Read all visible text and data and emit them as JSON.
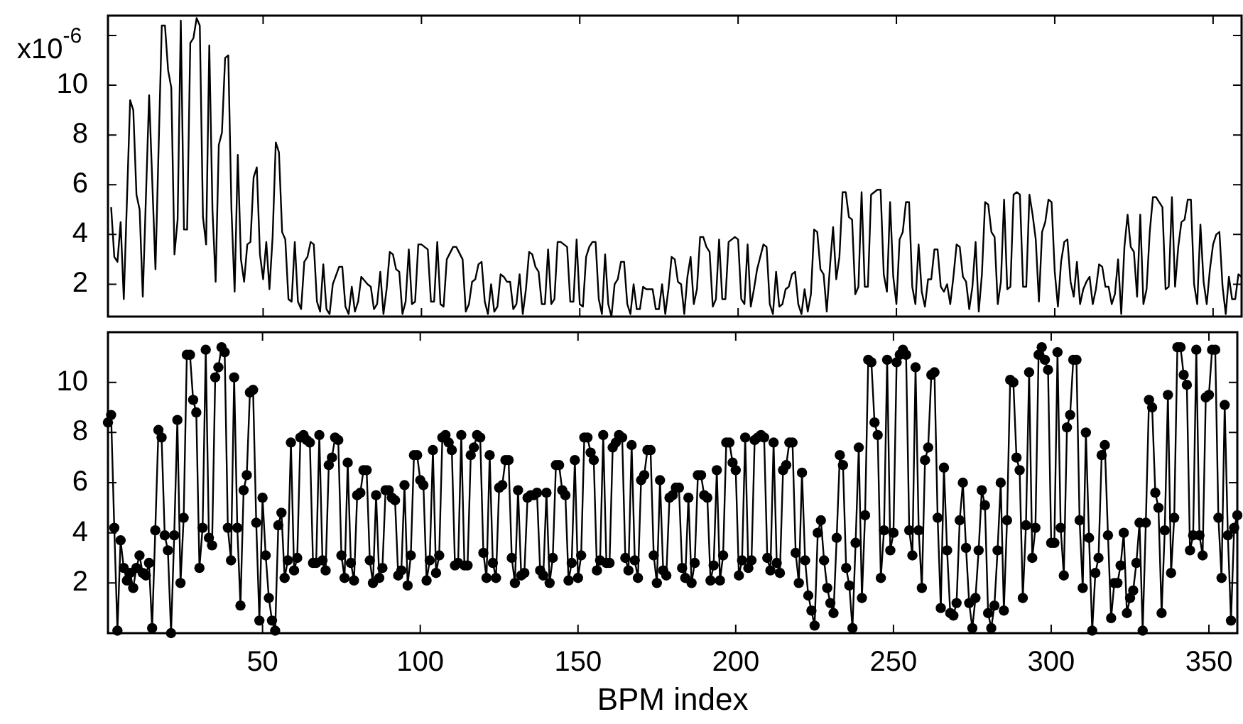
{
  "chart_data": [
    {
      "type": "line",
      "ylabel": "x10$^{-6}$",
      "marker": "none",
      "line_style": "solid",
      "grid": false,
      "legend": false,
      "tick_labels": "y",
      "xlim": [
        1,
        359
      ],
      "xticks": [
        50,
        100,
        150,
        200,
        250,
        300,
        350
      ],
      "ylim": [
        0.7,
        12.8
      ],
      "yticks": [
        2,
        4,
        6,
        8,
        10,
        {
          "value": 12,
          "label": null
        }
      ],
      "x": [
        2,
        3,
        4,
        5,
        6,
        8,
        9,
        10,
        11,
        12,
        14,
        16,
        18,
        19,
        20,
        21,
        22,
        23,
        24,
        25,
        26,
        27,
        28,
        29,
        30,
        31,
        32,
        33,
        34,
        35,
        36,
        37,
        38,
        39,
        40,
        41,
        42,
        43,
        44,
        45,
        46,
        47,
        48,
        49,
        50,
        51,
        52,
        53,
        54,
        55,
        56,
        57,
        58,
        59,
        60,
        61,
        62,
        63,
        64,
        65,
        66,
        67,
        68,
        69,
        70,
        71,
        72,
        74,
        75,
        76,
        77,
        78,
        79,
        80,
        81,
        83,
        84,
        85,
        86,
        87,
        88,
        89,
        90,
        91,
        92,
        93,
        94,
        95,
        96,
        97,
        98,
        99,
        100,
        102,
        103,
        104,
        105,
        106,
        107,
        108,
        110,
        111,
        113,
        114,
        115,
        116,
        117,
        118,
        119,
        120,
        121,
        122,
        123,
        124,
        125,
        126,
        127,
        128,
        129,
        130,
        131,
        132,
        133,
        134,
        135,
        136,
        137,
        138,
        139,
        140,
        141,
        142,
        143,
        144,
        146,
        147,
        148,
        149,
        150,
        151,
        152,
        153,
        154,
        155,
        156,
        157,
        158,
        159,
        160,
        161,
        162,
        163,
        164,
        165,
        166,
        167,
        168,
        169,
        170,
        171,
        172,
        173,
        174,
        175,
        176,
        177,
        178,
        179,
        180,
        181,
        182,
        183,
        184,
        185,
        186,
        187,
        188,
        189,
        190,
        191,
        192,
        193,
        194,
        195,
        196,
        197,
        198,
        199,
        200,
        201,
        202,
        203,
        204,
        205,
        206,
        207,
        208,
        209,
        210,
        211,
        212,
        213,
        214,
        215,
        216,
        217,
        218,
        219,
        220,
        221,
        222,
        223,
        224,
        225,
        226,
        227,
        228,
        229,
        230,
        231,
        232,
        233,
        234,
        235,
        236,
        237,
        238,
        239,
        240,
        241,
        242,
        243,
        244,
        245,
        246,
        247,
        248,
        249,
        250,
        251,
        252,
        253,
        254,
        255,
        256,
        257,
        258,
        259,
        260,
        261,
        262,
        263,
        264,
        265,
        266,
        267,
        268,
        269,
        270,
        271,
        272,
        273,
        274,
        275,
        276,
        277,
        278,
        279,
        280,
        281,
        282,
        283,
        284,
        285,
        286,
        287,
        288,
        289,
        290,
        291,
        292,
        293,
        294,
        295,
        296,
        297,
        298,
        299,
        300,
        301,
        302,
        303,
        304,
        305,
        306,
        307,
        308,
        309,
        310,
        311,
        312,
        313,
        314,
        315,
        316,
        317,
        318,
        319,
        320,
        321,
        322,
        323,
        324,
        325,
        326,
        327,
        328,
        329,
        330,
        331,
        332,
        333,
        334,
        335,
        336,
        337,
        338,
        339,
        340,
        341,
        342,
        343,
        344,
        345,
        346,
        347,
        348,
        349,
        350,
        351,
        352,
        353,
        354,
        355,
        356,
        357,
        358,
        359
      ],
      "series": [
        {
          "color": "#000000",
          "values": [
            5.1,
            3.1,
            2.9,
            4.5,
            1.4,
            9.4,
            9.0,
            5.6,
            5.0,
            1.5,
            9.6,
            2.6,
            12.4,
            12.4,
            10.6,
            9.9,
            3.2,
            4.6,
            12.6,
            4.2,
            4.2,
            11.7,
            11.9,
            12.7,
            12.4,
            4.7,
            3.6,
            11.6,
            5.0,
            2.1,
            7.6,
            8.1,
            11.1,
            11.2,
            5.0,
            1.7,
            7.2,
            3.0,
            2.1,
            3.6,
            3.7,
            6.3,
            6.7,
            3.2,
            2.2,
            3.7,
            1.8,
            3.9,
            7.7,
            7.3,
            4.1,
            3.8,
            1.4,
            1.3,
            3.7,
            1.3,
            1.0,
            2.9,
            3.1,
            3.7,
            3.6,
            1.3,
            0.9,
            2.8,
            1.0,
            0.8,
            2.0,
            2.7,
            2.7,
            1.1,
            0.8,
            1.9,
            0.9,
            1.3,
            2.3,
            2.0,
            1.9,
            1.0,
            1.2,
            2.5,
            0.8,
            1.8,
            3.3,
            3.2,
            2.6,
            2.5,
            0.8,
            1.3,
            3.4,
            1.2,
            1.3,
            3.6,
            3.6,
            3.4,
            1.3,
            1.3,
            3.7,
            1.2,
            1.1,
            3.0,
            3.5,
            3.5,
            3.0,
            0.9,
            1.2,
            2.1,
            2.2,
            2.8,
            2.9,
            1.3,
            0.8,
            2.0,
            0.9,
            1.1,
            2.4,
            2.3,
            2.1,
            2.1,
            1.0,
            1.2,
            2.4,
            0.8,
            1.8,
            3.3,
            3.2,
            2.7,
            2.5,
            1.2,
            1.2,
            3.4,
            1.2,
            1.4,
            3.7,
            3.7,
            3.5,
            1.3,
            1.3,
            3.8,
            1.2,
            1.1,
            3.1,
            3.5,
            3.7,
            3.7,
            1.4,
            0.8,
            3.2,
            1.2,
            0.7,
            2.0,
            2.2,
            2.9,
            2.9,
            1.2,
            0.8,
            2.0,
            1.0,
            1.0,
            1.9,
            1.8,
            1.8,
            1.8,
            1.0,
            1.0,
            2.0,
            0.8,
            1.8,
            3.1,
            3.0,
            2.1,
            2.0,
            0.8,
            2.3,
            3.1,
            1.2,
            1.8,
            3.9,
            3.9,
            3.5,
            3.3,
            1.1,
            1.4,
            3.8,
            1.4,
            1.4,
            3.7,
            3.8,
            3.9,
            3.8,
            1.4,
            1.2,
            3.6,
            1.1,
            1.8,
            2.6,
            3.1,
            3.6,
            3.5,
            1.2,
            0.8,
            2.5,
            1.1,
            1.2,
            1.8,
            1.9,
            2.4,
            2.5,
            1.2,
            0.8,
            1.8,
            0.9,
            1.6,
            4.2,
            4.1,
            2.6,
            2.4,
            0.9,
            2.7,
            4.3,
            2.2,
            3.1,
            5.7,
            5.7,
            4.7,
            4.6,
            1.6,
            1.9,
            5.7,
            1.9,
            1.9,
            5.6,
            5.7,
            5.8,
            5.8,
            2.4,
            1.7,
            5.3,
            2.3,
            1.2,
            3.8,
            4.1,
            5.3,
            5.3,
            1.9,
            1.2,
            3.6,
            1.7,
            1.1,
            2.2,
            2.2,
            3.4,
            3.4,
            1.9,
            1.7,
            2.0,
            1.2,
            2.3,
            3.6,
            3.5,
            2.3,
            2.1,
            1.0,
            1.9,
            3.7,
            0.9,
            2.4,
            5.3,
            5.2,
            4.1,
            3.9,
            1.2,
            2.1,
            5.4,
            1.8,
            1.9,
            5.6,
            5.7,
            5.6,
            1.9,
            1.9,
            5.6,
            4.8,
            3.8,
            1.3,
            4.1,
            4.5,
            5.4,
            5.3,
            2.5,
            1.1,
            2.9,
            3.7,
            3.8,
            2.1,
            1.5,
            2.9,
            1.2,
            1.8,
            2.1,
            2.3,
            1.2,
            1.8,
            2.8,
            2.7,
            1.9,
            1.9,
            1.2,
            1.6,
            3.0,
            0.8,
            3.5,
            4.8,
            3.5,
            3.3,
            1.5,
            4.8,
            1.2,
            1.8,
            4.1,
            5.5,
            5.5,
            5.3,
            5.1,
            1.8,
            1.9,
            5.5,
            1.9,
            3.5,
            4.5,
            4.6,
            5.4,
            5.4,
            2.0,
            1.2,
            4.4,
            2.1,
            1.2,
            2.6,
            3.6,
            4.0,
            4.1,
            1.9,
            0.8,
            2.3,
            1.4,
            1.4,
            2.4,
            2.3
          ]
        }
      ]
    },
    {
      "type": "line",
      "xlabel": "BPM index",
      "marker": "circle",
      "line_style": "solid",
      "grid": false,
      "legend": false,
      "xlim": [
        1,
        359
      ],
      "xticks": [
        50,
        100,
        150,
        200,
        250,
        300,
        350
      ],
      "ylim": [
        0,
        12
      ],
      "yticks": [
        2,
        4,
        6,
        8,
        10
      ],
      "x": [
        1,
        2,
        3,
        4,
        5,
        6,
        7,
        8,
        9,
        10,
        11,
        12,
        13,
        14,
        15,
        16,
        17,
        18,
        19,
        20,
        21,
        22,
        23,
        24,
        25,
        26,
        27,
        28,
        29,
        30,
        31,
        32,
        33,
        34,
        35,
        36,
        37,
        38,
        39,
        40,
        41,
        42,
        43,
        44,
        45,
        46,
        47,
        48,
        49,
        50,
        51,
        52,
        53,
        54,
        55,
        56,
        57,
        58,
        59,
        60,
        61,
        62,
        63,
        64,
        65,
        66,
        67,
        68,
        69,
        70,
        71,
        72,
        73,
        74,
        75,
        76,
        77,
        78,
        79,
        80,
        81,
        82,
        83,
        84,
        85,
        86,
        87,
        88,
        89,
        90,
        91,
        92,
        93,
        94,
        95,
        96,
        97,
        98,
        99,
        100,
        101,
        102,
        103,
        104,
        105,
        106,
        107,
        108,
        109,
        110,
        111,
        112,
        113,
        114,
        115,
        116,
        117,
        118,
        119,
        120,
        121,
        122,
        123,
        124,
        125,
        126,
        127,
        128,
        129,
        130,
        131,
        132,
        133,
        134,
        135,
        136,
        137,
        138,
        139,
        140,
        141,
        142,
        143,
        144,
        145,
        146,
        147,
        148,
        149,
        150,
        151,
        152,
        153,
        154,
        155,
        156,
        157,
        158,
        159,
        160,
        161,
        162,
        163,
        164,
        165,
        166,
        167,
        168,
        169,
        170,
        171,
        172,
        173,
        174,
        175,
        176,
        177,
        178,
        179,
        180,
        181,
        182,
        183,
        184,
        185,
        186,
        187,
        188,
        189,
        190,
        191,
        192,
        193,
        194,
        195,
        196,
        197,
        198,
        199,
        200,
        201,
        202,
        203,
        204,
        205,
        206,
        207,
        208,
        209,
        210,
        211,
        212,
        213,
        214,
        215,
        216,
        217,
        218,
        219,
        220,
        221,
        222,
        223,
        224,
        225,
        226,
        227,
        228,
        229,
        230,
        231,
        232,
        233,
        234,
        235,
        236,
        237,
        238,
        239,
        240,
        241,
        242,
        243,
        244,
        245,
        246,
        247,
        248,
        249,
        250,
        251,
        252,
        253,
        254,
        255,
        256,
        257,
        258,
        259,
        260,
        261,
        262,
        263,
        264,
        265,
        266,
        267,
        268,
        269,
        270,
        271,
        272,
        273,
        274,
        275,
        276,
        277,
        278,
        279,
        280,
        281,
        282,
        283,
        284,
        285,
        286,
        287,
        288,
        289,
        290,
        291,
        292,
        293,
        294,
        295,
        296,
        297,
        298,
        299,
        300,
        301,
        302,
        303,
        304,
        305,
        306,
        307,
        308,
        309,
        310,
        311,
        312,
        313,
        314,
        315,
        316,
        317,
        318,
        319,
        320,
        321,
        322,
        323,
        324,
        325,
        326,
        327,
        328,
        329,
        330,
        331,
        332,
        333,
        334,
        335,
        336,
        337,
        338,
        339,
        340,
        341,
        342,
        343,
        344,
        345,
        346,
        347,
        348,
        349,
        350,
        351,
        352,
        353,
        354,
        355,
        356,
        357,
        358,
        359
      ],
      "series": [
        {
          "color": "#000000",
          "values": [
            8.4,
            8.7,
            4.2,
            0.1,
            3.7,
            2.6,
            2.1,
            2.4,
            1.8,
            2.6,
            3.1,
            2.4,
            2.3,
            2.8,
            0.2,
            4.1,
            8.1,
            7.8,
            3.9,
            3.3,
            0.0,
            3.9,
            8.5,
            2.0,
            4.6,
            11.1,
            11.1,
            9.3,
            8.8,
            2.6,
            4.2,
            11.3,
            3.8,
            3.5,
            10.2,
            10.6,
            11.4,
            11.2,
            4.2,
            2.9,
            10.2,
            4.2,
            1.1,
            5.7,
            6.3,
            9.6,
            9.7,
            4.4,
            0.5,
            5.4,
            3.1,
            1.4,
            0.5,
            0.1,
            4.3,
            4.8,
            2.2,
            2.9,
            7.6,
            2.5,
            3.0,
            7.8,
            7.9,
            7.7,
            7.6,
            2.8,
            2.8,
            7.9,
            2.9,
            2.5,
            6.7,
            7.0,
            7.8,
            7.7,
            3.1,
            2.2,
            6.8,
            2.8,
            2.1,
            5.5,
            5.6,
            6.5,
            6.5,
            2.9,
            2.0,
            5.5,
            2.2,
            2.6,
            5.7,
            5.7,
            5.4,
            5.3,
            2.3,
            2.5,
            5.9,
            1.9,
            3.1,
            7.1,
            7.1,
            6.1,
            5.9,
            2.1,
            2.9,
            7.3,
            2.4,
            3.1,
            7.8,
            7.9,
            7.6,
            7.3,
            2.7,
            2.8,
            7.9,
            2.7,
            2.7,
            7.1,
            7.4,
            7.9,
            7.8,
            3.2,
            2.2,
            7.1,
            2.8,
            2.2,
            5.8,
            5.9,
            6.9,
            6.9,
            3.0,
            2.0,
            5.7,
            2.3,
            2.4,
            5.4,
            5.5,
            5.5,
            5.6,
            2.5,
            2.3,
            5.6,
            2.0,
            3.0,
            6.7,
            6.7,
            5.7,
            5.5,
            2.1,
            2.8,
            6.9,
            2.2,
            3.1,
            7.8,
            7.8,
            7.2,
            6.9,
            2.5,
            2.9,
            7.9,
            2.8,
            2.8,
            7.4,
            7.6,
            7.9,
            7.8,
            3.0,
            2.5,
            7.5,
            2.9,
            2.2,
            6.1,
            6.3,
            7.3,
            7.3,
            3.1,
            2.0,
            6.1,
            2.5,
            2.3,
            5.4,
            5.5,
            5.8,
            5.8,
            2.6,
            2.2,
            5.4,
            2.0,
            2.8,
            6.3,
            6.3,
            5.5,
            5.4,
            2.1,
            2.7,
            6.5,
            2.1,
            3.1,
            7.6,
            7.6,
            6.8,
            6.5,
            2.3,
            2.9,
            7.8,
            2.6,
            2.9,
            7.7,
            7.8,
            7.9,
            7.8,
            3.0,
            2.5,
            7.6,
            2.8,
            2.4,
            6.5,
            6.7,
            7.6,
            7.6,
            3.2,
            2.0,
            6.4,
            2.9,
            1.5,
            0.9,
            0.3,
            4.0,
            4.5,
            2.9,
            1.8,
            1.2,
            0.8,
            3.8,
            7.1,
            6.7,
            2.6,
            1.9,
            0.2,
            3.6,
            7.4,
            1.4,
            4.7,
            10.9,
            10.8,
            8.4,
            7.9,
            2.2,
            4.1,
            10.9,
            3.3,
            4.0,
            10.8,
            11.1,
            11.3,
            11.1,
            4.1,
            3.1,
            10.6,
            4.1,
            1.8,
            6.9,
            7.4,
            10.3,
            10.4,
            4.6,
            1.0,
            6.6,
            3.3,
            0.8,
            0.7,
            1.2,
            4.5,
            6.0,
            3.4,
            1.2,
            0.2,
            1.4,
            3.3,
            5.7,
            5.1,
            0.8,
            0.2,
            1.1,
            3.3,
            6.0,
            0.9,
            4.5,
            10.1,
            10.0,
            7.0,
            6.5,
            1.4,
            4.3,
            10.4,
            3.0,
            4.2,
            11.1,
            11.4,
            10.9,
            10.5,
            3.6,
            3.6,
            11.2,
            4.2,
            2.3,
            8.2,
            8.7,
            10.9,
            10.9,
            4.5,
            1.8,
            8.0,
            3.8,
            0.1,
            2.4,
            3.0,
            7.1,
            7.5,
            3.9,
            0.6,
            2.0,
            2.0,
            2.7,
            4.0,
            0.8,
            1.4,
            1.7,
            2.8,
            4.4,
            0.1,
            4.4,
            9.3,
            9.0,
            5.6,
            5.0,
            0.8,
            4.1,
            9.5,
            2.4,
            4.6,
            11.4,
            11.4,
            10.3,
            9.9,
            3.3,
            3.9,
            11.3,
            3.9,
            3.1,
            9.4,
            9.5,
            11.3,
            11.3,
            4.6,
            2.2,
            9.1,
            3.9,
            0.5,
            4.2,
            4.7
          ]
        }
      ]
    }
  ]
}
